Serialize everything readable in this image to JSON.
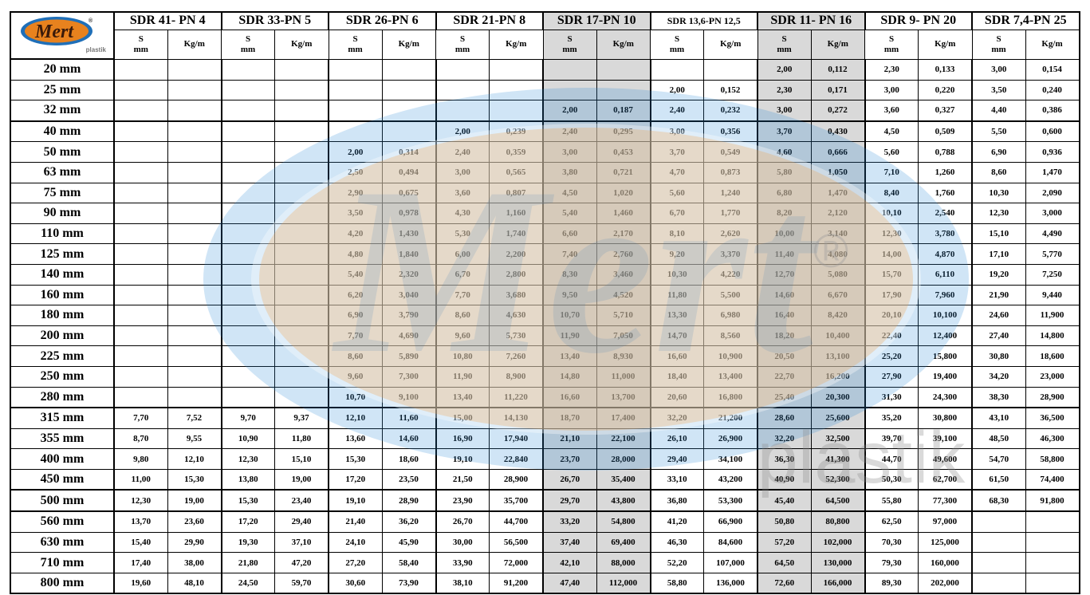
{
  "logo": {
    "brand": "Mert",
    "sub": "plastik",
    "registered": "®"
  },
  "watermark": {
    "brand": "Mert",
    "sub": "plastik",
    "registered": "®"
  },
  "colors": {
    "logo_orange": "#e8821e",
    "logo_blue": "#1f6fb8",
    "highlight_gray": "#d9d9d9"
  },
  "groups": [
    {
      "label": "SDR 41- PN 4",
      "gray": false
    },
    {
      "label": "SDR 33-PN 5",
      "gray": false
    },
    {
      "label": "SDR 26-PN 6",
      "gray": false
    },
    {
      "label": "SDR 21-PN 8",
      "gray": false
    },
    {
      "label": "SDR 17-PN 10",
      "gray": true
    },
    {
      "label": "SDR 13,6-PN 12,5",
      "gray": false
    },
    {
      "label": "SDR 11- PN 16",
      "gray": true
    },
    {
      "label": "SDR 9- PN 20",
      "gray": false
    },
    {
      "label": "SDR 7,4-PN 25",
      "gray": false
    }
  ],
  "subheaders": {
    "s_top": "S",
    "s_bottom": "mm",
    "kg": "Kg/m"
  },
  "rows": [
    {
      "size": "20 mm",
      "cells": [
        "",
        "",
        "",
        "",
        "",
        "",
        "",
        "",
        "",
        "",
        "",
        "",
        "2,00",
        "0,112",
        "2,30",
        "0,133",
        "3,00",
        "0,154"
      ]
    },
    {
      "size": "25 mm",
      "cells": [
        "",
        "",
        "",
        "",
        "",
        "",
        "",
        "",
        "",
        "",
        "2,00",
        "0,152",
        "2,30",
        "0,171",
        "3,00",
        "0,220",
        "3,50",
        "0,240"
      ]
    },
    {
      "size": "32 mm",
      "cells": [
        "",
        "",
        "",
        "",
        "",
        "",
        "",
        "",
        "2,00",
        "0,187",
        "2,40",
        "0,232",
        "3,00",
        "0,272",
        "3,60",
        "0,327",
        "4,40",
        "0,386"
      ]
    },
    {
      "size": "40 mm",
      "cells": [
        "",
        "",
        "",
        "",
        "",
        "",
        "2,00",
        "0,239",
        "2,40",
        "0,295",
        "3,00",
        "0,356",
        "3,70",
        "0,430",
        "4,50",
        "0,509",
        "5,50",
        "0,600"
      ]
    },
    {
      "size": "50 mm",
      "cells": [
        "",
        "",
        "",
        "",
        "2,00",
        "0,314",
        "2,40",
        "0,359",
        "3,00",
        "0,453",
        "3,70",
        "0,549",
        "4,60",
        "0,666",
        "5,60",
        "0,788",
        "6,90",
        "0,936"
      ]
    },
    {
      "size": "63 mm",
      "cells": [
        "",
        "",
        "",
        "",
        "2,50",
        "0,494",
        "3,00",
        "0,565",
        "3,80",
        "0,721",
        "4,70",
        "0,873",
        "5,80",
        "1,050",
        "7,10",
        "1,260",
        "8,60",
        "1,470"
      ]
    },
    {
      "size": "75 mm",
      "cells": [
        "",
        "",
        "",
        "",
        "2,90",
        "0,675",
        "3,60",
        "0,807",
        "4,50",
        "1,020",
        "5,60",
        "1,240",
        "6,80",
        "1,470",
        "8,40",
        "1,760",
        "10,30",
        "2,090"
      ]
    },
    {
      "size": "90 mm",
      "cells": [
        "",
        "",
        "",
        "",
        "3,50",
        "0,978",
        "4,30",
        "1,160",
        "5,40",
        "1,460",
        "6,70",
        "1,770",
        "8,20",
        "2,120",
        "10,10",
        "2,540",
        "12,30",
        "3,000"
      ]
    },
    {
      "size": "110 mm",
      "cells": [
        "",
        "",
        "",
        "",
        "4,20",
        "1,430",
        "5,30",
        "1,740",
        "6,60",
        "2,170",
        "8,10",
        "2,620",
        "10,00",
        "3,140",
        "12,30",
        "3,780",
        "15,10",
        "4,490"
      ]
    },
    {
      "size": "125 mm",
      "cells": [
        "",
        "",
        "",
        "",
        "4,80",
        "1,840",
        "6,00",
        "2,200",
        "7,40",
        "2,760",
        "9,20",
        "3,370",
        "11,40",
        "4,080",
        "14,00",
        "4,870",
        "17,10",
        "5,770"
      ]
    },
    {
      "size": "140 mm",
      "cells": [
        "",
        "",
        "",
        "",
        "5,40",
        "2,320",
        "6,70",
        "2,800",
        "8,30",
        "3,460",
        "10,30",
        "4,220",
        "12,70",
        "5,080",
        "15,70",
        "6,110",
        "19,20",
        "7,250"
      ]
    },
    {
      "size": "160 mm",
      "cells": [
        "",
        "",
        "",
        "",
        "6,20",
        "3,040",
        "7,70",
        "3,680",
        "9,50",
        "4,520",
        "11,80",
        "5,500",
        "14,60",
        "6,670",
        "17,90",
        "7,960",
        "21,90",
        "9,440"
      ]
    },
    {
      "size": "180 mm",
      "cells": [
        "",
        "",
        "",
        "",
        "6,90",
        "3,790",
        "8,60",
        "4,630",
        "10,70",
        "5,710",
        "13,30",
        "6,980",
        "16,40",
        "8,420",
        "20,10",
        "10,100",
        "24,60",
        "11,900"
      ]
    },
    {
      "size": "200 mm",
      "cells": [
        "",
        "",
        "",
        "",
        "7,70",
        "4,690",
        "9,60",
        "5,730",
        "11,90",
        "7,050",
        "14,70",
        "8,560",
        "18,20",
        "10,400",
        "22,40",
        "12,400",
        "27,40",
        "14,800"
      ]
    },
    {
      "size": "225 mm",
      "cells": [
        "",
        "",
        "",
        "",
        "8,60",
        "5,890",
        "10,80",
        "7,260",
        "13,40",
        "8,930",
        "16,60",
        "10,900",
        "20,50",
        "13,100",
        "25,20",
        "15,800",
        "30,80",
        "18,600"
      ]
    },
    {
      "size": "250 mm",
      "cells": [
        "",
        "",
        "",
        "",
        "9,60",
        "7,300",
        "11,90",
        "8,900",
        "14,80",
        "11,000",
        "18,40",
        "13,400",
        "22,70",
        "16,200",
        "27,90",
        "19,400",
        "34,20",
        "23,000"
      ]
    },
    {
      "size": "280 mm",
      "cells": [
        "",
        "",
        "",
        "",
        "10,70",
        "9,100",
        "13,40",
        "11,220",
        "16,60",
        "13,700",
        "20,60",
        "16,800",
        "25,40",
        "20,300",
        "31,30",
        "24,300",
        "38,30",
        "28,900"
      ]
    },
    {
      "size": "315 mm",
      "cells": [
        "7,70",
        "7,52",
        "9,70",
        "9,37",
        "12,10",
        "11,60",
        "15,00",
        "14,130",
        "18,70",
        "17,400",
        "32,20",
        "21,200",
        "28,60",
        "25,600",
        "35,20",
        "30,800",
        "43,10",
        "36,500"
      ]
    },
    {
      "size": "355 mm",
      "cells": [
        "8,70",
        "9,55",
        "10,90",
        "11,80",
        "13,60",
        "14,60",
        "16,90",
        "17,940",
        "21,10",
        "22,100",
        "26,10",
        "26,900",
        "32,20",
        "32,500",
        "39,70",
        "39,100",
        "48,50",
        "46,300"
      ]
    },
    {
      "size": "400 mm",
      "cells": [
        "9,80",
        "12,10",
        "12,30",
        "15,10",
        "15,30",
        "18,60",
        "19,10",
        "22,840",
        "23,70",
        "28,000",
        "29,40",
        "34,100",
        "36,30",
        "41,300",
        "44,70",
        "49,600",
        "54,70",
        "58,800"
      ]
    },
    {
      "size": "450 mm",
      "cells": [
        "11,00",
        "15,30",
        "13,80",
        "19,00",
        "17,20",
        "23,50",
        "21,50",
        "28,900",
        "26,70",
        "35,400",
        "33,10",
        "43,200",
        "40,90",
        "52,300",
        "50,30",
        "62,700",
        "61,50",
        "74,400"
      ]
    },
    {
      "size": "500 mm",
      "cells": [
        "12,30",
        "19,00",
        "15,30",
        "23,40",
        "19,10",
        "28,90",
        "23,90",
        "35,700",
        "29,70",
        "43,800",
        "36,80",
        "53,300",
        "45,40",
        "64,500",
        "55,80",
        "77,300",
        "68,30",
        "91,800"
      ]
    },
    {
      "size": "560 mm",
      "cells": [
        "13,70",
        "23,60",
        "17,20",
        "29,40",
        "21,40",
        "36,20",
        "26,70",
        "44,700",
        "33,20",
        "54,800",
        "41,20",
        "66,900",
        "50,80",
        "80,800",
        "62,50",
        "97,000",
        "",
        ""
      ]
    },
    {
      "size": "630 mm",
      "cells": [
        "15,40",
        "29,90",
        "19,30",
        "37,10",
        "24,10",
        "45,90",
        "30,00",
        "56,500",
        "37,40",
        "69,400",
        "46,30",
        "84,600",
        "57,20",
        "102,000",
        "70,30",
        "125,000",
        "",
        ""
      ]
    },
    {
      "size": "710 mm",
      "cells": [
        "17,40",
        "38,00",
        "21,80",
        "47,20",
        "27,20",
        "58,40",
        "33,90",
        "72,000",
        "42,10",
        "88,000",
        "52,20",
        "107,000",
        "64,50",
        "130,000",
        "79,30",
        "160,000",
        "",
        ""
      ]
    },
    {
      "size": "800 mm",
      "cells": [
        "19,60",
        "48,10",
        "24,50",
        "59,70",
        "30,60",
        "73,90",
        "38,10",
        "91,200",
        "47,40",
        "112,000",
        "58,80",
        "136,000",
        "72,60",
        "166,000",
        "89,30",
        "202,000",
        "",
        ""
      ]
    }
  ]
}
